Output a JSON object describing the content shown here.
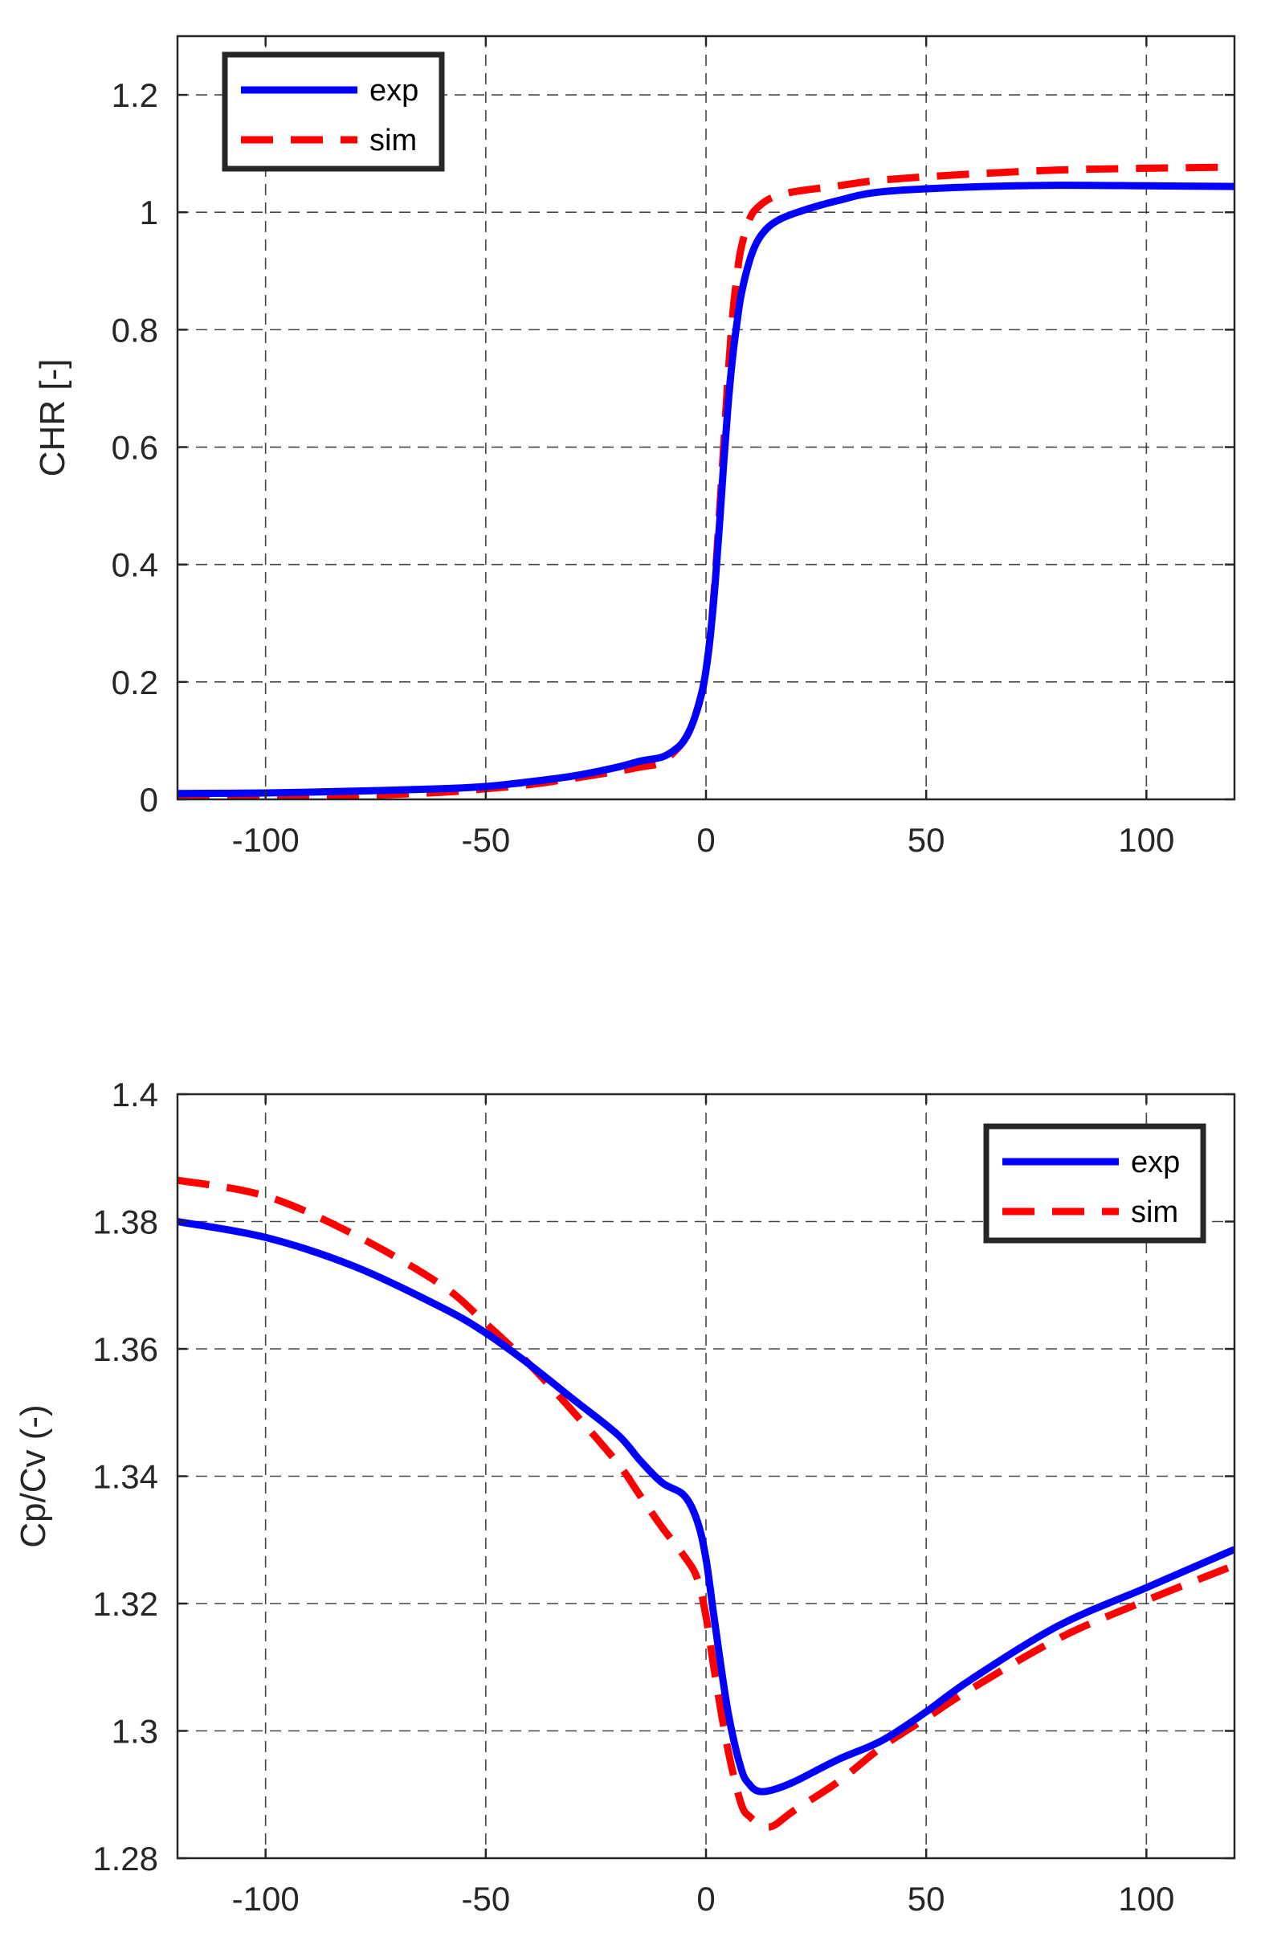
{
  "colors": {
    "exp": "#0000ff",
    "sim": "#ff0000",
    "grid": "#262626",
    "axes": "#262626"
  },
  "chart_data": [
    {
      "type": "line",
      "title": "",
      "xlabel": "",
      "ylabel": "CHR [-]",
      "xlim": [
        -120,
        120
      ],
      "ylim": [
        0,
        1.3
      ],
      "xticks": [
        -100,
        -50,
        0,
        50,
        100
      ],
      "xtick_labels": [
        "-100",
        "-50",
        "0",
        "50",
        "100"
      ],
      "yticks": [
        0,
        0.2,
        0.4,
        0.6,
        0.8,
        1,
        1.2
      ],
      "ytick_labels": [
        "0",
        "0.2",
        "0.4",
        "0.6",
        "0.8",
        "1",
        "1.2"
      ],
      "grid": true,
      "legend_position": "top-left",
      "series": [
        {
          "name": "exp",
          "style": "solid",
          "color": "#0000ff",
          "x": [
            -120,
            -100,
            -80,
            -60,
            -50,
            -40,
            -30,
            -20,
            -15,
            -10,
            -7,
            -5,
            -3,
            -1,
            0,
            1,
            2,
            3,
            4,
            5,
            6,
            7,
            8,
            10,
            12,
            15,
            20,
            30,
            40,
            60,
            80,
            100,
            120
          ],
          "y": [
            0.01,
            0.011,
            0.014,
            0.018,
            0.022,
            0.03,
            0.04,
            0.055,
            0.065,
            0.072,
            0.085,
            0.1,
            0.13,
            0.18,
            0.22,
            0.28,
            0.36,
            0.46,
            0.57,
            0.67,
            0.75,
            0.81,
            0.86,
            0.92,
            0.955,
            0.98,
            0.998,
            1.02,
            1.035,
            1.043,
            1.046,
            1.045,
            1.044
          ]
        },
        {
          "name": "sim",
          "style": "dashed",
          "color": "#ff0000",
          "x": [
            -120,
            -100,
            -80,
            -60,
            -50,
            -40,
            -30,
            -20,
            -15,
            -10,
            -8,
            -5,
            -3,
            -1,
            0,
            1,
            2,
            3,
            4,
            5,
            6,
            7,
            8,
            10,
            12,
            15,
            20,
            30,
            40,
            60,
            80,
            100,
            120
          ],
          "y": [
            0.002,
            0.003,
            0.006,
            0.012,
            0.018,
            0.025,
            0.036,
            0.048,
            0.055,
            0.062,
            0.075,
            0.1,
            0.13,
            0.18,
            0.22,
            0.28,
            0.37,
            0.48,
            0.6,
            0.72,
            0.82,
            0.89,
            0.94,
            0.99,
            1.01,
            1.025,
            1.035,
            1.045,
            1.055,
            1.065,
            1.072,
            1.075,
            1.077
          ]
        }
      ]
    },
    {
      "type": "line",
      "title": "",
      "xlabel": "",
      "ylabel": "Cp/Cv (-)",
      "xlim": [
        -120,
        120
      ],
      "ylim": [
        1.28,
        1.4
      ],
      "xticks": [
        -100,
        -50,
        0,
        50,
        100
      ],
      "xtick_labels": [
        "-100",
        "-50",
        "0",
        "50",
        "100"
      ],
      "yticks": [
        1.28,
        1.3,
        1.32,
        1.34,
        1.36,
        1.38,
        1.4
      ],
      "ytick_labels": [
        "1.28",
        "1.3",
        "1.32",
        "1.34",
        "1.36",
        "1.38",
        "1.4"
      ],
      "grid": true,
      "legend_position": "top-right",
      "series": [
        {
          "name": "exp",
          "style": "solid",
          "color": "#0000ff",
          "x": [
            -120,
            -100,
            -80,
            -60,
            -50,
            -40,
            -30,
            -20,
            -15,
            -10,
            -5,
            -2,
            0,
            2,
            5,
            8,
            10,
            12,
            15,
            20,
            30,
            40,
            50,
            60,
            80,
            100,
            120
          ],
          "y": [
            1.38,
            1.3775,
            1.373,
            1.3665,
            1.3625,
            1.3575,
            1.352,
            1.3465,
            1.3425,
            1.339,
            1.337,
            1.333,
            1.327,
            1.317,
            1.303,
            1.294,
            1.2915,
            1.2905,
            1.2907,
            1.292,
            1.2955,
            1.2985,
            1.303,
            1.308,
            1.3165,
            1.3225,
            1.3285
          ]
        },
        {
          "name": "sim",
          "style": "dashed",
          "color": "#ff0000",
          "x": [
            -120,
            -100,
            -80,
            -60,
            -50,
            -40,
            -30,
            -20,
            -15,
            -10,
            -5,
            -2,
            0,
            2,
            5,
            8,
            10,
            12,
            15,
            20,
            30,
            40,
            50,
            60,
            80,
            100,
            120
          ],
          "y": [
            1.3865,
            1.384,
            1.378,
            1.37,
            1.364,
            1.3575,
            1.35,
            1.342,
            1.337,
            1.332,
            1.3275,
            1.324,
            1.318,
            1.309,
            1.297,
            1.2885,
            1.2865,
            1.2855,
            1.285,
            1.2875,
            1.292,
            1.2975,
            1.302,
            1.3065,
            1.3145,
            1.3205,
            1.326
          ]
        }
      ]
    }
  ]
}
